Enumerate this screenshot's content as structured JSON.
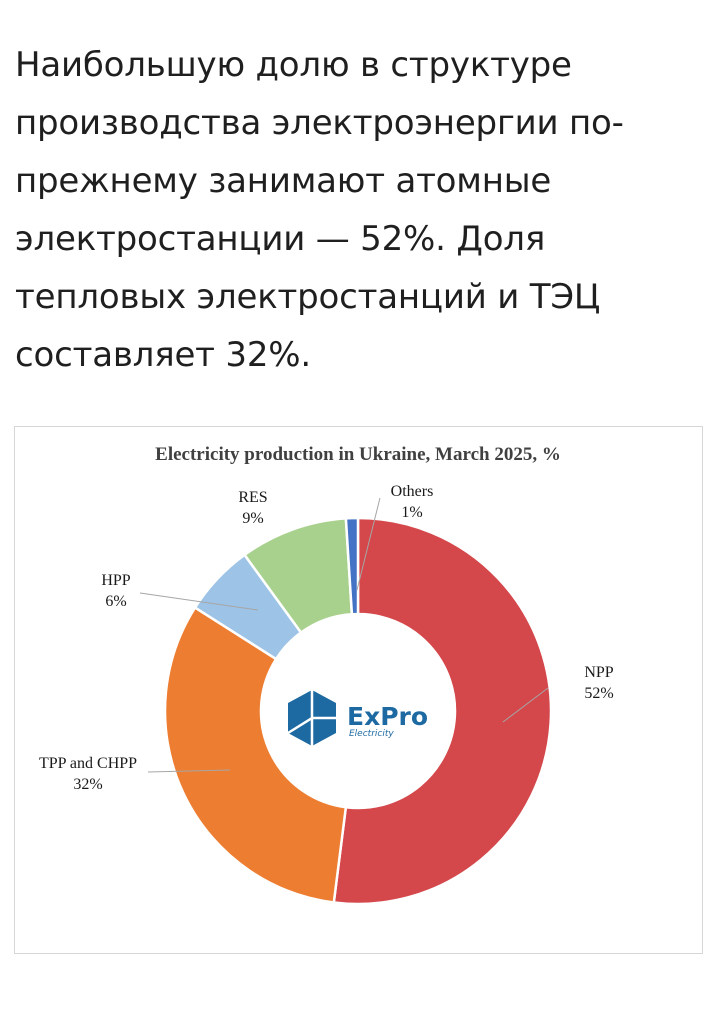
{
  "article": {
    "paragraph": "Наибольшую долю в структуре производства электроэнергии по-прежнему занимают атомные электростанции — 52%. Доля тепловых электростанций и ТЭЦ составляет 32%."
  },
  "chart_data": {
    "type": "pie",
    "title": "Electricity production in Ukraine, March 2025, %",
    "unit": "%",
    "donut": true,
    "slices": [
      {
        "name": "NPP",
        "value": 52,
        "label": "52%",
        "color": "#d4474a"
      },
      {
        "name": "TPP and CHPP",
        "value": 32,
        "label": "32%",
        "color": "#ed7d31"
      },
      {
        "name": "HPP",
        "value": 6,
        "label": "6%",
        "color": "#9dc3e6"
      },
      {
        "name": "RES",
        "value": 9,
        "label": "9%",
        "color": "#a9d18e"
      },
      {
        "name": "Others",
        "value": 1,
        "label": "1%",
        "color": "#4472c4"
      }
    ]
  },
  "logo": {
    "brand": "ExPro",
    "tagline": "Electricity",
    "color": "#1d6aa3"
  }
}
